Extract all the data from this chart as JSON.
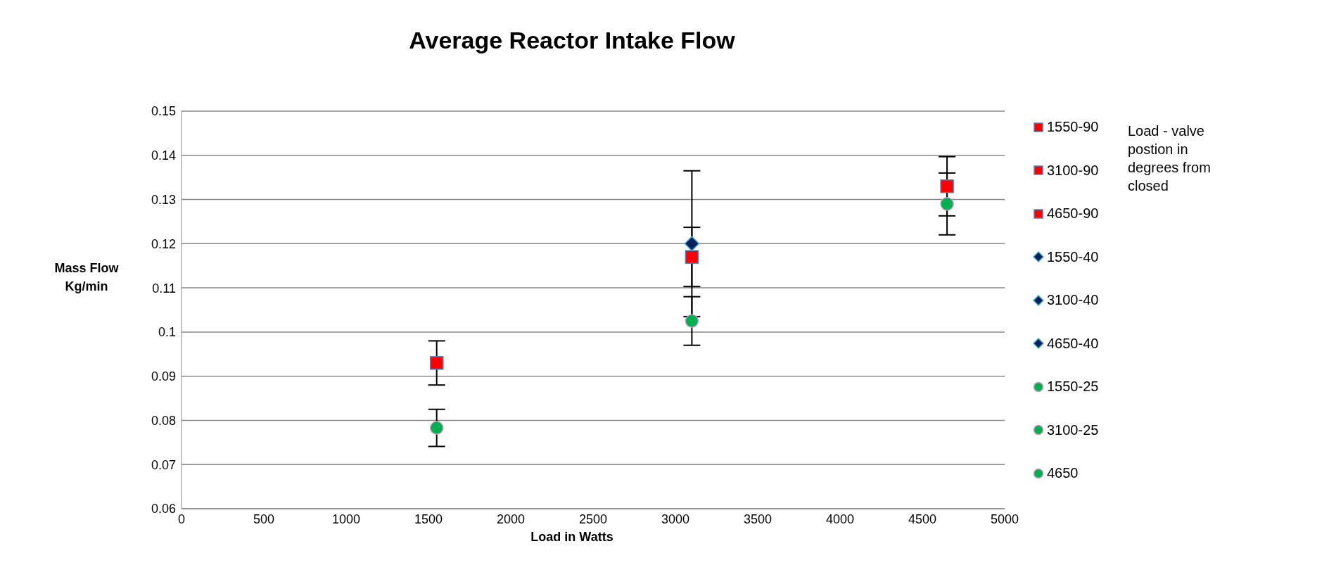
{
  "chart_data": {
    "type": "scatter",
    "title": "Average Reactor Intake Flow",
    "xlabel": "Load in Watts",
    "ylabel": "Mass Flow Kg/min",
    "legend_title": "Load - valve postion in degrees from closed",
    "xlim": [
      0,
      5000
    ],
    "xticks": [
      0,
      500,
      1000,
      1500,
      2000,
      2500,
      3000,
      3500,
      4000,
      4500,
      5000
    ],
    "ylim": [
      0.06,
      0.15
    ],
    "yticks": [
      0.06,
      0.07,
      0.08,
      0.09,
      0.1,
      0.11,
      0.12,
      0.13,
      0.14,
      0.15
    ],
    "grid": "y",
    "legend": "right",
    "series": [
      {
        "name": "1550-90",
        "marker": "square",
        "color": "#ff0000",
        "x": [
          1550
        ],
        "values": [
          0.093
        ],
        "errors": [
          0.005
        ]
      },
      {
        "name": "3100-90",
        "marker": "square",
        "color": "#ff0000",
        "x": [
          3100
        ],
        "values": [
          0.117
        ],
        "errors": [
          0.0067
        ]
      },
      {
        "name": "4650-90",
        "marker": "square",
        "color": "#ff0000",
        "x": [
          4650
        ],
        "values": [
          0.133
        ],
        "errors": [
          0.0067
        ]
      },
      {
        "name": "1550-40",
        "marker": "diamond",
        "color": "#002060"
      },
      {
        "name": "3100-40",
        "marker": "diamond",
        "color": "#002060",
        "x": [
          3100
        ],
        "values": [
          0.12
        ],
        "errors": [
          0.0165
        ]
      },
      {
        "name": "4650-40",
        "marker": "diamond",
        "color": "#002060"
      },
      {
        "name": "1550-25",
        "marker": "circle",
        "color": "#00b050",
        "x": [
          1550
        ],
        "values": [
          0.0783
        ],
        "errors": [
          0.0042
        ]
      },
      {
        "name": "3100-25",
        "marker": "circle",
        "color": "#00b050",
        "x": [
          3100
        ],
        "values": [
          0.1025
        ],
        "errors": [
          0.0055
        ]
      },
      {
        "name": "4650",
        "marker": "circle",
        "color": "#00b050",
        "x": [
          4650
        ],
        "values": [
          0.129
        ],
        "errors": [
          0.007
        ]
      }
    ]
  }
}
